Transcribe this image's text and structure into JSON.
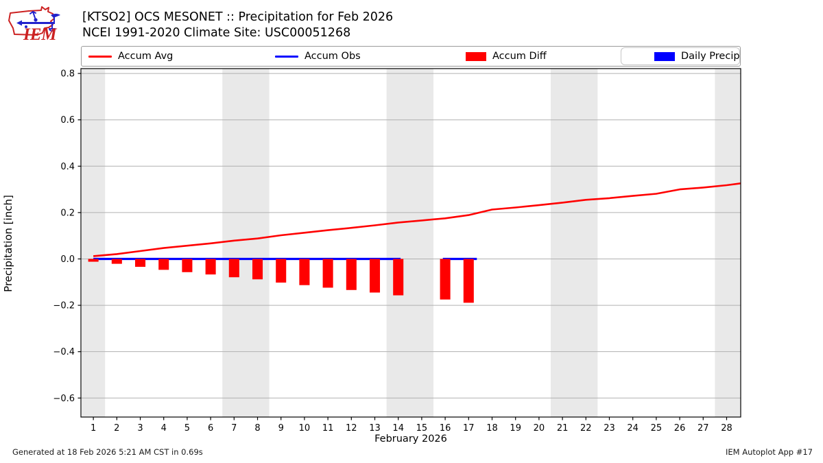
{
  "header": {
    "logo_text": "IEM",
    "title_line1": "[KTSO2] OCS MESONET :: Precipitation for Feb 2026",
    "title_line2": "NCEI 1991-2020 Climate Site: USC00051268"
  },
  "legend": {
    "items": [
      {
        "label": "Accum Avg",
        "swatch": "line",
        "color": "#ff0000"
      },
      {
        "label": "Accum Obs",
        "swatch": "line",
        "color": "#0000ff"
      },
      {
        "label": "Accum Diff",
        "swatch": "patch",
        "color": "#ff0000"
      },
      {
        "label": "Daily Precip",
        "swatch": "patch",
        "color": "#0000ff"
      }
    ]
  },
  "chart_data": {
    "type": "line+bar",
    "xlabel": "February 2026",
    "ylabel": "Precipitation [inch]",
    "xlim": [
      0.47,
      28.6
    ],
    "ylim": [
      -0.682,
      0.821
    ],
    "xticks": [
      1,
      2,
      3,
      4,
      5,
      6,
      7,
      8,
      9,
      10,
      11,
      12,
      13,
      14,
      15,
      16,
      17,
      18,
      19,
      20,
      21,
      22,
      23,
      24,
      25,
      26,
      27,
      28
    ],
    "ytick_labels": [
      "0.8",
      "0.6",
      "0.4",
      "0.2",
      "0.0",
      "−0.2",
      "−0.4",
      "−0.6"
    ],
    "ytick_values": [
      0.8,
      0.6,
      0.4,
      0.2,
      0.0,
      -0.2,
      -0.4,
      -0.6
    ],
    "grid": "horizontal-only",
    "weekend_bands_x": [
      [
        0.5,
        1.5
      ],
      [
        6.5,
        8.5
      ],
      [
        13.5,
        15.5
      ],
      [
        20.5,
        22.5
      ],
      [
        27.5,
        28.6
      ]
    ],
    "band_color": "#e9e9e9",
    "grid_color": "#b0b0b0",
    "series": [
      {
        "name": "Accum Avg",
        "type": "line",
        "color": "#ff0000",
        "x": [
          1,
          2,
          3,
          4,
          5,
          6,
          7,
          8,
          9,
          10,
          11,
          12,
          13,
          14,
          15,
          16,
          17,
          18,
          19,
          20,
          21,
          22,
          23,
          24,
          25,
          26,
          27,
          28,
          28.6
        ],
        "y": [
          0.012,
          0.021,
          0.034,
          0.047,
          0.057,
          0.067,
          0.079,
          0.088,
          0.102,
          0.113,
          0.124,
          0.134,
          0.145,
          0.157,
          0.166,
          0.175,
          0.189,
          0.213,
          0.222,
          0.232,
          0.243,
          0.255,
          0.262,
          0.272,
          0.281,
          0.3,
          0.308,
          0.318,
          0.326
        ]
      },
      {
        "name": "Accum Obs",
        "type": "line",
        "color": "#0000ff",
        "segments": [
          {
            "x": [
              1.0,
              14.1
            ],
            "y": 0.0
          },
          {
            "x": [
              15.9,
              17.35
            ],
            "y": 0.0
          }
        ]
      },
      {
        "name": "Accum Diff",
        "type": "bar",
        "color": "#ff0000",
        "bar_width_days": 0.44,
        "x": [
          1,
          2,
          3,
          4,
          5,
          6,
          7,
          8,
          9,
          10,
          11,
          12,
          13,
          14,
          16,
          17
        ],
        "y": [
          -0.012,
          -0.021,
          -0.034,
          -0.047,
          -0.057,
          -0.067,
          -0.079,
          -0.088,
          -0.102,
          -0.113,
          -0.124,
          -0.134,
          -0.145,
          -0.157,
          -0.175,
          -0.189
        ]
      },
      {
        "name": "Daily Precip",
        "type": "bar",
        "color": "#0000ff",
        "x": [],
        "y": []
      }
    ]
  },
  "footer": {
    "left": "Generated at 18 Feb 2026 5:21 AM CST in 0.69s",
    "right": "IEM Autoplot App #17"
  }
}
